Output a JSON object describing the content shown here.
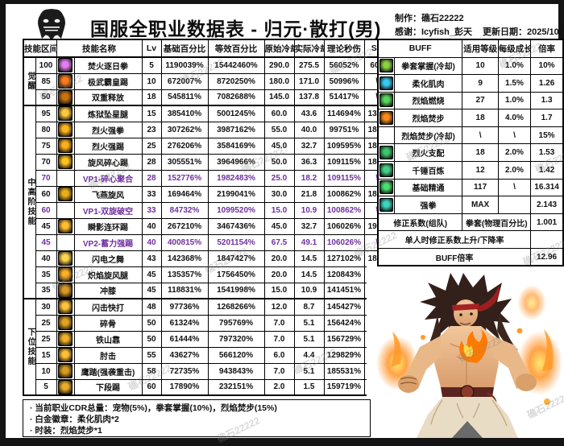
{
  "header": {
    "title": "国服全职业数据表 - 归元·散打(男)",
    "maker": "制作：礁石22222",
    "thanks": "感谢：Icyfish_彭天",
    "update": "更新日期：2025/10/30"
  },
  "watermark_text": "礁石22222",
  "colors": {
    "vp_text": "#7030A0",
    "border": "#000000",
    "page_bg": "#ffffff",
    "frame": "#141414"
  },
  "skill_table": {
    "headers": {
      "range": "技能区间",
      "name": "技能名称",
      "lv": "Lv",
      "base": "基础百分比",
      "equiv": "等效百分比",
      "cd": "原始冷却",
      "cd_actual": "实际冷却",
      "dps": "理论秒伤",
      "sp": "SP"
    },
    "groups": [
      {
        "label": "觉醒",
        "rows": [
          {
            "range": "100",
            "name": "焚火逐日拳",
            "lv": "5",
            "base": "1190039%",
            "equiv": "15442460%",
            "cd": "290.0",
            "cd_actual": "275.5",
            "dps": "56052%",
            "sp": "600",
            "vp": false,
            "icon": "skill-icon",
            "icon_color": "#e27df2"
          },
          {
            "range": "85",
            "name": "极武霸皇踢",
            "lv": "10",
            "base": "672007%",
            "equiv": "8720250%",
            "cd": "180.0",
            "cd_actual": "171.0",
            "dps": "50996%",
            "sp": "\\",
            "vp": false,
            "icon": "skill-icon",
            "icon_color": "#ff7a1a"
          },
          {
            "range": "50",
            "name": "双重释放",
            "lv": "18",
            "base": "545811%",
            "equiv": "7082688%",
            "cd": "145.0",
            "cd_actual": "137.8",
            "dps": "51417%",
            "sp": "\\",
            "vp": false,
            "icon": "skill-icon",
            "icon_color": "#c9720f"
          }
        ]
      },
      {
        "label": "中高阶技能",
        "rows": [
          {
            "range": "95",
            "name": "炼狱坠星腿",
            "lv": "15",
            "base": "385410%",
            "equiv": "5001245%",
            "cd": "60.0",
            "cd_actual": "43.6",
            "dps": "114694%",
            "sp": "1300",
            "vp": false,
            "icon": "skill-icon",
            "icon_color": "#ffc83d"
          },
          {
            "range": "80",
            "name": "烈火强拳",
            "lv": "23",
            "base": "307262%",
            "equiv": "3987162%",
            "cd": "55.0",
            "cd_actual": "40.0",
            "dps": "99751%",
            "sp": "1890",
            "vp": false,
            "icon": "skill-icon",
            "icon_color": "#ffb520"
          },
          {
            "range": "75",
            "name": "烈火强踢",
            "lv": "25",
            "base": "276206%",
            "equiv": "3584169%",
            "cd": "45.0",
            "cd_actual": "32.7",
            "dps": "109595%",
            "sp": "1840",
            "vp": false,
            "icon": "skill-icon",
            "icon_color": "#ffae1c"
          },
          {
            "range": "70",
            "name": "旋风碎心踢",
            "lv": "28",
            "base": "305551%",
            "equiv": "3964966%",
            "cd": "50.0",
            "cd_actual": "36.3",
            "dps": "109115%",
            "sp": "1820",
            "vp": false,
            "icon": "skill-icon",
            "icon_color": "#ffc31f"
          },
          {
            "range": "70",
            "name": "VP1-碎心聚合",
            "lv": "28",
            "base": "152776%",
            "equiv": "1982483%",
            "cd": "25.0",
            "cd_actual": "18.2",
            "dps": "109115%",
            "sp": "\\",
            "vp": true,
            "icon": "",
            "icon_color": ""
          },
          {
            "range": "60",
            "name": "飞燕旋风",
            "lv": "33",
            "base": "169464%",
            "equiv": "2199041%",
            "cd": "30.0",
            "cd_actual": "21.8",
            "dps": "100862%",
            "sp": "1860",
            "vp": false,
            "icon": "skill-icon",
            "icon_color": "#e8b019"
          },
          {
            "range": "60",
            "name": "VP1-双旋破空",
            "lv": "33",
            "base": "84732%",
            "equiv": "1099520%",
            "cd": "15.0",
            "cd_actual": "10.9",
            "dps": "100862%",
            "sp": "\\",
            "vp": true,
            "icon": "",
            "icon_color": ""
          },
          {
            "range": "45",
            "name": "瞬影连环踢",
            "lv": "40",
            "base": "267210%",
            "equiv": "3467436%",
            "cd": "45.0",
            "cd_actual": "32.7",
            "dps": "106026%",
            "sp": "1900",
            "vp": false,
            "icon": "skill-icon",
            "icon_color": "#ffbe2e"
          },
          {
            "range": "45",
            "name": "VP2-蓄力强踢",
            "lv": "40",
            "base": "400815%",
            "equiv": "5201154%",
            "cd": "67.5",
            "cd_actual": "49.1",
            "dps": "106026%",
            "sp": "\\",
            "vp": true,
            "icon": "",
            "icon_color": ""
          },
          {
            "range": "40",
            "name": "闪电之舞",
            "lv": "43",
            "base": "142368%",
            "equiv": "1847427%",
            "cd": "20.0",
            "cd_actual": "14.5",
            "dps": "127102%",
            "sp": "1845",
            "vp": false,
            "icon": "skill-icon",
            "icon_color": "#ffd84d"
          },
          {
            "range": "35",
            "name": "炽焰旋风腿",
            "lv": "45",
            "base": "135357%",
            "equiv": "1756450%",
            "cd": "20.0",
            "cd_actual": "14.5",
            "dps": "120843%",
            "sp": "1720",
            "vp": false,
            "icon": "skill-icon",
            "icon_color": "#ffaf22"
          },
          {
            "range": "35",
            "name": "冲膝",
            "lv": "45",
            "base": "118831%",
            "equiv": "1541998%",
            "cd": "15.0",
            "cd_actual": "10.9",
            "dps": "141451%",
            "sp": "1720",
            "vp": false,
            "icon": "skill-icon",
            "icon_color": "#d99a25"
          }
        ]
      },
      {
        "label": "下位技能",
        "rows": [
          {
            "range": "30",
            "name": "闪击快打",
            "lv": "48",
            "base": "97736%",
            "equiv": "1268266%",
            "cd": "12.0",
            "cd_actual": "8.7",
            "dps": "145427%",
            "sp": "1380",
            "vp": false,
            "icon": "skill-icon",
            "icon_color": "#ffc43a"
          },
          {
            "range": "25",
            "name": "碎骨",
            "lv": "50",
            "base": "61324%",
            "equiv": "795769%",
            "cd": "7.0",
            "cd_actual": "5.1",
            "dps": "156424%",
            "sp": "1200",
            "vp": false,
            "icon": "skill-icon",
            "icon_color": "#e2a21e"
          },
          {
            "range": "25",
            "name": "铁山靠",
            "lv": "50",
            "base": "61444%",
            "equiv": "797320%",
            "cd": "7.0",
            "cd_actual": "5.1",
            "dps": "156729%",
            "sp": "1200",
            "vp": false,
            "icon": "skill-icon",
            "icon_color": "#f0b028"
          },
          {
            "range": "15",
            "name": "肘击",
            "lv": "55",
            "base": "43627%",
            "equiv": "566120%",
            "cd": "6.0",
            "cd_actual": "4.4",
            "dps": "129829%",
            "sp": "1325",
            "vp": false,
            "icon": "skill-icon",
            "icon_color": "#ffc036"
          },
          {
            "range": "10",
            "name": "鹰踏(强袭重击)",
            "lv": "58",
            "base": "72735%",
            "equiv": "943843%",
            "cd": "7.0",
            "cd_actual": "5.1",
            "dps": "185531%",
            "sp": "1125",
            "vp": false,
            "icon": "skill-icon",
            "icon_color": "#d79a1f"
          },
          {
            "range": "5",
            "name": "下段踢",
            "lv": "60",
            "base": "17890%",
            "equiv": "232151%",
            "cd": "2.0",
            "cd_actual": "1.5",
            "dps": "159719%",
            "sp": "855",
            "vp": false,
            "icon": "skill-icon",
            "icon_color": "#e8ae2a"
          }
        ]
      }
    ]
  },
  "buff_table": {
    "headers": {
      "buff": "BUFF",
      "level": "适用等级",
      "growth": "每级成长",
      "rate": "倍率"
    },
    "rows": [
      {
        "name": "拳套掌握(冷却)",
        "level": "10",
        "growth": "1.0%",
        "rate": "10%",
        "icon": "glove-mastery-icon",
        "icon_color": "#8dd13f"
      },
      {
        "name": "柔化肌肉",
        "level": "9",
        "growth": "1.5%",
        "rate": "1.26",
        "icon": "muscle-shift-icon",
        "icon_color": "#37c8f0"
      },
      {
        "name": "烈焰燃烧",
        "level": "27",
        "growth": "1.0%",
        "rate": "1.3",
        "icon": "flame-burn-icon",
        "icon_color": "#57d65a"
      },
      {
        "name": "烈焰焚步",
        "level": "18",
        "growth": "4.0%",
        "rate": "1.7",
        "icon": "flame-step-icon",
        "icon_color": "#ff8c1a"
      },
      {
        "name": "烈焰焚步(冷却)",
        "level": "\\",
        "growth": "\\",
        "rate": "15%",
        "icon": "",
        "icon_color": ""
      },
      {
        "name": "烈火支配",
        "level": "18",
        "growth": "2.0%",
        "rate": "1.53",
        "icon": "fire-dominate-icon",
        "icon_color": "#3ec46a"
      },
      {
        "name": "千锤百炼",
        "level": "12",
        "growth": "2.0%",
        "rate": "1.42",
        "icon": "tempering-icon",
        "icon_color": "#45d08a"
      },
      {
        "name": "基础精通",
        "level": "117",
        "growth": "\\",
        "rate": "16.314",
        "icon": "basic-mastery-icon",
        "icon_color": "#4adf70"
      },
      {
        "name": "强拳",
        "level": "MAX",
        "growth": "",
        "rate": "2.143",
        "icon": "strong-fist-icon",
        "icon_color": "#3ad6c0"
      }
    ],
    "footer_rows": [
      {
        "label": "修正系数(组队)",
        "mid": "拳套(物理百分比)",
        "rate": "1.001"
      },
      {
        "label": "单人时修正系数上升/下降率",
        "mid": null,
        "rate": ""
      },
      {
        "label": "BUFF倍率",
        "mid": null,
        "rate": "12.96"
      }
    ]
  },
  "notes": [
    "· 当前职业CDR总量：宠物(5%)，拳套掌握(10%)，烈焰焚步(15%)",
    "· 白金徽章：柔化肌肉*2",
    "· 时装：烈焰焚步*1"
  ]
}
